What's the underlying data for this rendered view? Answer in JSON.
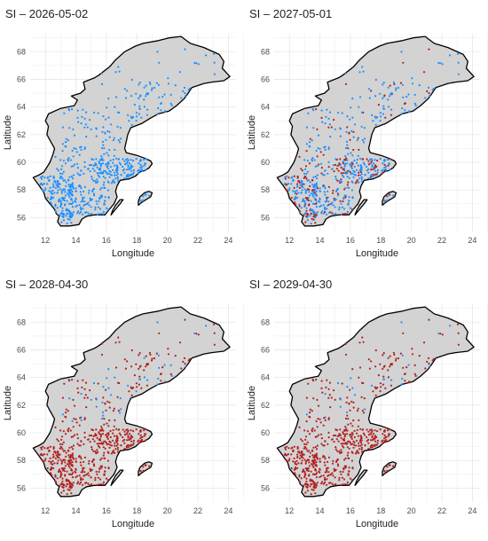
{
  "figure": {
    "x_axis": {
      "label": "Longitude",
      "ticks": [
        12,
        14,
        16,
        18,
        20,
        22,
        24
      ],
      "range": [
        11.0,
        24.5
      ]
    },
    "y_axis": {
      "label": "Latitude",
      "ticks": [
        56,
        58,
        60,
        62,
        64,
        66,
        68
      ],
      "range": [
        55.0,
        69.3
      ]
    },
    "grid": true,
    "colors": {
      "land_fill": "#d3d3d3",
      "outline": "#000000",
      "grid": "#e6e6e6",
      "series_blue": "#1e90ff",
      "series_red": "#b22222",
      "text": "#222222",
      "tick_text": "#4d4d4d"
    },
    "panels": [
      {
        "title": "SI – 2026-05-02",
        "red_fraction": 0.0
      },
      {
        "title": "SI – 2027-05-01",
        "red_fraction": 0.3
      },
      {
        "title": "SI – 2028-04-30",
        "red_fraction": 0.88
      },
      {
        "title": "SI – 2029-04-30",
        "red_fraction": 0.97
      }
    ]
  },
  "outlines": {
    "mainland": [
      [
        11.2,
        58.9
      ],
      [
        11.6,
        59.1
      ],
      [
        11.9,
        59.3
      ],
      [
        12.3,
        60.0
      ],
      [
        12.5,
        60.6
      ],
      [
        12.6,
        61.0
      ],
      [
        12.3,
        61.6
      ],
      [
        12.1,
        62.0
      ],
      [
        12.2,
        62.6
      ],
      [
        12.0,
        63.0
      ],
      [
        12.2,
        63.5
      ],
      [
        13.0,
        63.9
      ],
      [
        13.9,
        64.1
      ],
      [
        14.1,
        64.5
      ],
      [
        13.7,
        64.8
      ],
      [
        14.3,
        65.0
      ],
      [
        14.6,
        65.3
      ],
      [
        14.5,
        65.8
      ],
      [
        15.2,
        66.1
      ],
      [
        15.5,
        66.3
      ],
      [
        16.2,
        66.9
      ],
      [
        16.6,
        67.4
      ],
      [
        17.2,
        68.0
      ],
      [
        17.9,
        68.4
      ],
      [
        18.4,
        68.6
      ],
      [
        19.4,
        68.8
      ],
      [
        20.1,
        69.0
      ],
      [
        20.9,
        69.1
      ],
      [
        21.5,
        68.6
      ],
      [
        22.4,
        68.3
      ],
      [
        23.4,
        67.8
      ],
      [
        23.7,
        67.3
      ],
      [
        23.6,
        66.8
      ],
      [
        24.1,
        66.2
      ],
      [
        23.7,
        65.9
      ],
      [
        22.9,
        65.8
      ],
      [
        22.4,
        65.7
      ],
      [
        21.6,
        65.4
      ],
      [
        21.3,
        64.9
      ],
      [
        21.1,
        64.6
      ],
      [
        20.6,
        64.1
      ],
      [
        20.1,
        63.7
      ],
      [
        19.4,
        63.5
      ],
      [
        18.9,
        63.2
      ],
      [
        18.3,
        62.8
      ],
      [
        17.6,
        62.5
      ],
      [
        17.4,
        62.0
      ],
      [
        17.3,
        61.5
      ],
      [
        17.2,
        61.0
      ],
      [
        17.3,
        60.7
      ],
      [
        18.0,
        60.5
      ],
      [
        18.5,
        60.3
      ],
      [
        18.9,
        60.1
      ],
      [
        19.0,
        59.9
      ],
      [
        18.8,
        59.6
      ],
      [
        18.5,
        59.4
      ],
      [
        18.2,
        59.3
      ],
      [
        17.9,
        59.0
      ],
      [
        17.5,
        58.8
      ],
      [
        16.9,
        58.7
      ],
      [
        16.7,
        58.3
      ],
      [
        16.6,
        57.9
      ],
      [
        16.7,
        57.5
      ],
      [
        16.5,
        57.0
      ],
      [
        16.2,
        56.6
      ],
      [
        15.9,
        56.2
      ],
      [
        15.6,
        56.2
      ],
      [
        15.2,
        56.2
      ],
      [
        14.7,
        56.1
      ],
      [
        14.4,
        55.9
      ],
      [
        14.2,
        55.5
      ],
      [
        13.6,
        55.4
      ],
      [
        13.0,
        55.4
      ],
      [
        12.8,
        55.7
      ],
      [
        12.9,
        56.1
      ],
      [
        12.7,
        56.3
      ],
      [
        12.6,
        56.6
      ],
      [
        12.3,
        57.0
      ],
      [
        12.0,
        57.4
      ],
      [
        11.9,
        57.8
      ],
      [
        11.6,
        58.3
      ],
      [
        11.2,
        58.9
      ]
    ],
    "gotland": [
      [
        18.1,
        56.9
      ],
      [
        18.3,
        57.1
      ],
      [
        18.6,
        57.3
      ],
      [
        18.9,
        57.5
      ],
      [
        19.0,
        57.8
      ],
      [
        18.8,
        57.9
      ],
      [
        18.5,
        57.8
      ],
      [
        18.2,
        57.5
      ],
      [
        18.1,
        57.2
      ],
      [
        18.1,
        56.9
      ]
    ],
    "oland": [
      [
        16.3,
        56.2
      ],
      [
        16.6,
        56.6
      ],
      [
        16.9,
        57.0
      ],
      [
        17.1,
        57.3
      ],
      [
        16.9,
        57.3
      ],
      [
        16.6,
        56.9
      ],
      [
        16.4,
        56.5
      ],
      [
        16.3,
        56.2
      ]
    ]
  },
  "station_clusters": [
    {
      "region": "southwest",
      "lon": [
        11.5,
        13.8
      ],
      "lat": [
        55.5,
        59.0
      ],
      "count": 160
    },
    {
      "region": "south-central",
      "lon": [
        13.4,
        16.2
      ],
      "lat": [
        56.2,
        58.4
      ],
      "count": 110
    },
    {
      "region": "east-central",
      "lon": [
        15.0,
        18.6
      ],
      "lat": [
        58.5,
        60.3
      ],
      "count": 150
    },
    {
      "region": "central",
      "lon": [
        12.6,
        16.8
      ],
      "lat": [
        59.0,
        61.3
      ],
      "count": 70
    },
    {
      "region": "north-inland",
      "lon": [
        13.0,
        17.0
      ],
      "lat": [
        61.3,
        64.0
      ],
      "count": 55
    },
    {
      "region": "north-coast",
      "lon": [
        17.2,
        21.5
      ],
      "lat": [
        61.5,
        65.8
      ],
      "count": 60
    },
    {
      "region": "far-north",
      "lon": [
        15.5,
        23.5
      ],
      "lat": [
        64.5,
        68.5
      ],
      "count": 25
    },
    {
      "region": "gotland",
      "lon": [
        18.2,
        18.9
      ],
      "lat": [
        57.1,
        57.7
      ],
      "count": 8
    }
  ]
}
